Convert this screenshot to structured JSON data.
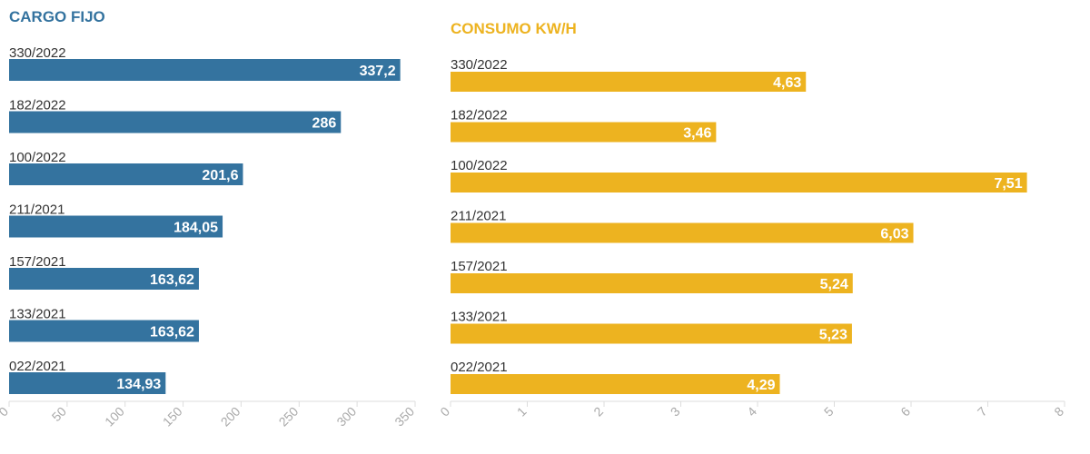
{
  "chart_data": [
    {
      "type": "bar",
      "orientation": "horizontal",
      "title": "CARGO FIJO",
      "color": "#34739f",
      "categories": [
        "330/2022",
        "182/2022",
        "100/2022",
        "211/2021",
        "157/2021",
        "133/2021",
        "022/2021"
      ],
      "values": [
        337.2,
        286,
        201.6,
        184.05,
        163.62,
        163.62,
        134.93
      ],
      "value_labels": [
        "337,2",
        "286",
        "201,6",
        "184,05",
        "163,62",
        "163,62",
        "134,93"
      ],
      "xlim": [
        0,
        350
      ],
      "xticks": [
        0,
        50,
        100,
        150,
        200,
        250,
        300,
        350
      ],
      "xtick_labels": [
        "0",
        "50",
        "100",
        "150",
        "200",
        "250",
        "300",
        "350"
      ],
      "grid": false
    },
    {
      "type": "bar",
      "orientation": "horizontal",
      "title": "CONSUMO KW/H",
      "color": "#edb320",
      "categories": [
        "330/2022",
        "182/2022",
        "100/2022",
        "211/2021",
        "157/2021",
        "133/2021",
        "022/2021"
      ],
      "values": [
        4.63,
        3.46,
        7.51,
        6.03,
        5.24,
        5.23,
        4.29
      ],
      "value_labels": [
        "4,63",
        "3,46",
        "7,51",
        "6,03",
        "5,24",
        "5,23",
        "4,29"
      ],
      "xlim": [
        0,
        8
      ],
      "xticks": [
        0,
        1,
        2,
        3,
        4,
        5,
        6,
        7,
        8
      ],
      "xtick_labels": [
        "0",
        "1",
        "2",
        "3",
        "4",
        "5",
        "6",
        "7",
        "8"
      ],
      "grid": false
    }
  ]
}
